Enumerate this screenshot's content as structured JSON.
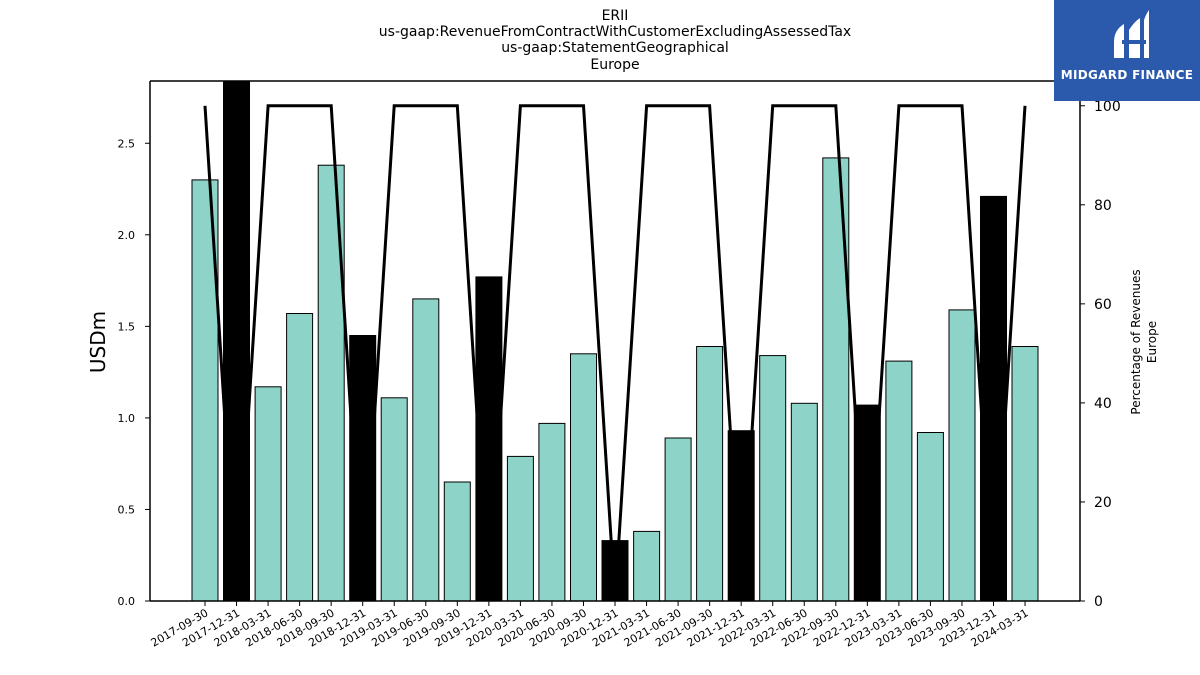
{
  "title_lines": [
    "ERII",
    "us-gaap:RevenueFromContractWithCustomerExcludingAssessedTax",
    "us-gaap:StatementGeographical",
    "Europe"
  ],
  "logo": {
    "text": "MIDGARD FINANCE",
    "color": "#2b5aad",
    "icon": "midgard-logo-icon"
  },
  "colors": {
    "bar_regular": "#8dd3c7",
    "bar_q4": "#000000",
    "line": "#000000"
  },
  "chart_data": {
    "type": "bar",
    "categories": [
      "2017-09-30",
      "2017-12-31",
      "2018-03-31",
      "2018-06-30",
      "2018-09-30",
      "2018-12-31",
      "2019-03-31",
      "2019-06-30",
      "2019-09-30",
      "2019-12-31",
      "2020-03-31",
      "2020-06-30",
      "2020-09-30",
      "2020-12-31",
      "2021-03-31",
      "2021-06-30",
      "2021-09-30",
      "2021-12-31",
      "2022-03-31",
      "2022-06-30",
      "2022-09-30",
      "2022-12-31",
      "2023-03-31",
      "2023-06-30",
      "2023-09-30",
      "2023-12-31",
      "2024-03-31"
    ],
    "values": [
      2.3,
      2.84,
      1.17,
      1.57,
      2.38,
      1.45,
      1.11,
      1.65,
      0.65,
      1.77,
      0.79,
      0.97,
      1.35,
      0.33,
      0.38,
      0.89,
      1.39,
      0.93,
      1.34,
      1.08,
      2.42,
      1.07,
      1.31,
      0.92,
      1.59,
      2.21,
      1.39
    ],
    "highlight": [
      false,
      true,
      false,
      false,
      false,
      true,
      false,
      false,
      false,
      true,
      false,
      false,
      false,
      true,
      false,
      false,
      false,
      true,
      false,
      false,
      false,
      true,
      false,
      false,
      false,
      true,
      false
    ],
    "line_series": {
      "axis": "right",
      "values": [
        100,
        0,
        100,
        100,
        100,
        0,
        100,
        100,
        100,
        0,
        100,
        100,
        100,
        0,
        100,
        100,
        100,
        0,
        100,
        100,
        100,
        0,
        100,
        100,
        100,
        0,
        100
      ]
    },
    "ylabel": "USDm",
    "ylabel_right": [
      "Percentage of Revenues",
      "Europe"
    ],
    "ylim": [
      0,
      2.84
    ],
    "yticks": [
      "0.0",
      "0.5",
      "1.0",
      "1.5",
      "2.0",
      "2.5"
    ],
    "ylim_right": [
      0,
      105
    ],
    "yticks_right": [
      "0",
      "20",
      "40",
      "60",
      "80",
      "100"
    ],
    "grid": false
  }
}
